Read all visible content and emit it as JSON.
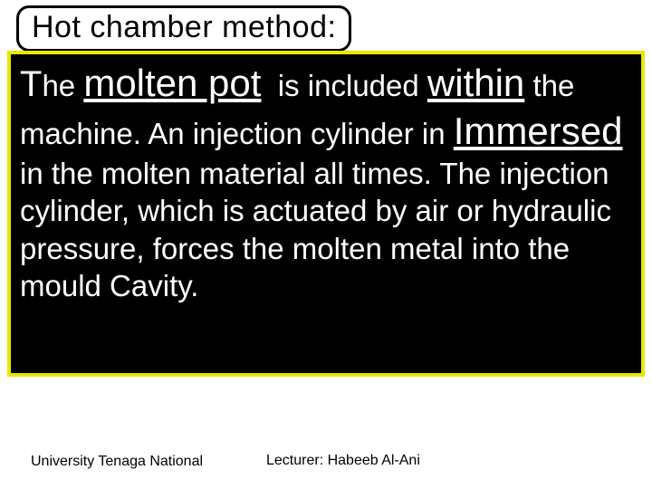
{
  "slide": {
    "title": "Hot chamber method:",
    "body": {
      "seg1_cap": "T",
      "seg1_rest": "he",
      "seg2_em": "molten pot",
      "seg3": "is  included",
      "seg4_em": "within",
      "seg5": "the machine. An  injection  cylinder  in",
      "seg6_em": "Immersed",
      "seg7": "in the  molten material all times. The injection cylinder,  which is actuated by air or hydraulic  pressure, forces the molten metal into the mould Cavity."
    },
    "footer": {
      "left": "University Tenaga National",
      "center": "Lecturer: Habeeb Al-Ani"
    },
    "colors": {
      "background": "#ffffff",
      "title_border": "#000000",
      "body_bg": "#000000",
      "body_border": "#e8e800",
      "body_text": "#ffffff",
      "footer_text": "#000000"
    },
    "typography": {
      "title_fontsize": 34,
      "body_fontsize": 33,
      "emphasis_fontsize": 42,
      "footer_fontsize": 16
    }
  }
}
